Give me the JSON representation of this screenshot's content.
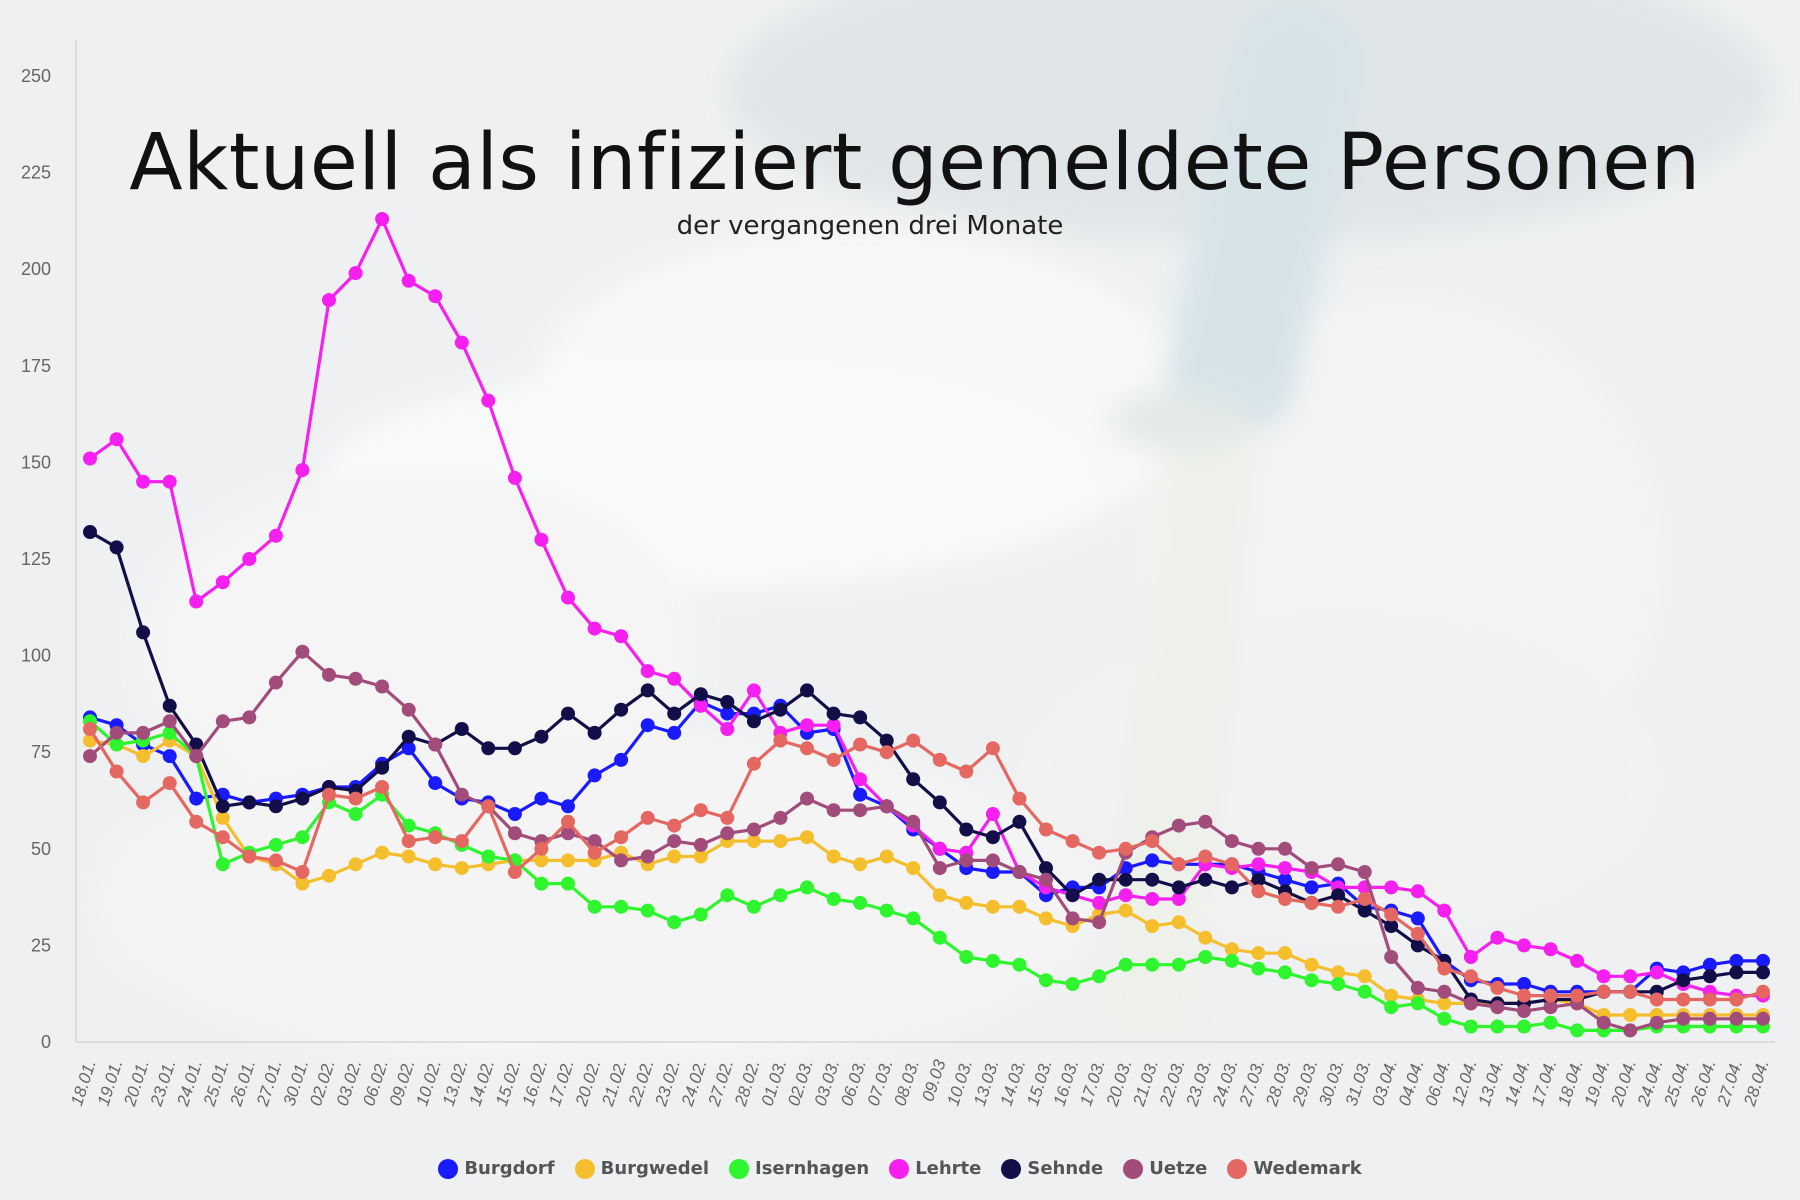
{
  "chart_data": {
    "type": "line",
    "title": "Aktuell als infiziert gemeldete Personen",
    "subtitle": "der vergangenen drei Monate",
    "xlabel": "",
    "ylabel": "",
    "ylim": [
      0,
      250
    ],
    "yticks": [
      "0",
      "25",
      "50",
      "75",
      "100",
      "125",
      "150",
      "175",
      "200",
      "225",
      "250"
    ],
    "grid": false,
    "legend_position": "bottom-center",
    "categories": [
      "18.01.",
      "19.01.",
      "20.01.",
      "23.01.",
      "24.01.",
      "25.01.",
      "26.01.",
      "27.01.",
      "30.01.",
      "02.02.",
      "03.02.",
      "06.02.",
      "09.02.",
      "10.02.",
      "13.02.",
      "14.02.",
      "15.02.",
      "16.02.",
      "17.02.",
      "20.02.",
      "21.02.",
      "22.02.",
      "23.02.",
      "24.02.",
      "27.02.",
      "28.02.",
      "01.03.",
      "02.03.",
      "03.03.",
      "06.03.",
      "07.03.",
      "08.03.",
      "09.03",
      "10.03.",
      "13.03.",
      "14.03.",
      "15.03.",
      "16.03.",
      "17.03.",
      "20.03.",
      "21.03.",
      "22.03.",
      "23.03.",
      "24.03.",
      "27.03.",
      "28.03.",
      "29.03.",
      "30.03.",
      "31.03.",
      "03.04.",
      "04.04.",
      "06.04.",
      "12.04.",
      "13.04.",
      "14.04.",
      "17.04.",
      "18.04.",
      "19.04.",
      "20.04.",
      "24.04.",
      "25.04.",
      "26.04.",
      "27.04.",
      "28.04."
    ],
    "series": [
      {
        "name": "Burgdorf",
        "color": "#1a1aff",
        "values": [
          84,
          82,
          77,
          74,
          63,
          64,
          62,
          63,
          64,
          66,
          66,
          72,
          76,
          67,
          63,
          62,
          59,
          63,
          61,
          69,
          73,
          82,
          80,
          88,
          85,
          85,
          87,
          80,
          81,
          64,
          61,
          55,
          50,
          45,
          44,
          44,
          38,
          40,
          40,
          45,
          47,
          46,
          46,
          46,
          44,
          42,
          40,
          41,
          35,
          34,
          32,
          21,
          16,
          15,
          15,
          13,
          13,
          13,
          13,
          19,
          18,
          20,
          21,
          21
        ]
      },
      {
        "name": "Burgwedel",
        "color": "#f5be2d",
        "values": [
          78,
          77,
          74,
          78,
          74,
          58,
          48,
          46,
          41,
          43,
          46,
          49,
          48,
          46,
          45,
          46,
          47,
          47,
          47,
          47,
          49,
          46,
          48,
          48,
          52,
          52,
          52,
          53,
          48,
          46,
          48,
          45,
          38,
          36,
          35,
          35,
          32,
          30,
          33,
          34,
          30,
          31,
          27,
          24,
          23,
          23,
          20,
          18,
          17,
          12,
          11,
          10,
          10,
          10,
          10,
          11,
          10,
          7,
          7,
          7,
          7,
          7,
          7,
          7
        ]
      },
      {
        "name": "Isernhagen",
        "color": "#2ef52e",
        "values": [
          83,
          77,
          78,
          80,
          74,
          46,
          49,
          51,
          53,
          62,
          59,
          64,
          56,
          54,
          51,
          48,
          47,
          41,
          41,
          35,
          35,
          34,
          31,
          33,
          38,
          35,
          38,
          40,
          37,
          36,
          34,
          32,
          27,
          22,
          21,
          20,
          16,
          15,
          17,
          20,
          20,
          20,
          22,
          21,
          19,
          18,
          16,
          15,
          13,
          9,
          10,
          6,
          4,
          4,
          4,
          5,
          3,
          3,
          3,
          4,
          4,
          4,
          4,
          4
        ]
      },
      {
        "name": "Lehrte",
        "color": "#f520f0",
        "values": [
          151,
          156,
          145,
          145,
          114,
          119,
          125,
          131,
          148,
          192,
          199,
          213,
          197,
          193,
          181,
          166,
          146,
          130,
          115,
          107,
          105,
          96,
          94,
          87,
          81,
          91,
          80,
          82,
          82,
          68,
          61,
          56,
          50,
          49,
          59,
          44,
          40,
          38,
          36,
          38,
          37,
          37,
          46,
          45,
          46,
          45,
          44,
          40,
          40,
          40,
          39,
          34,
          22,
          27,
          25,
          24,
          21,
          17,
          17,
          18,
          15,
          13,
          12,
          12
        ]
      },
      {
        "name": "Sehnde",
        "color": "#120f48",
        "values": [
          132,
          128,
          106,
          87,
          77,
          61,
          62,
          61,
          63,
          66,
          65,
          71,
          79,
          77,
          81,
          76,
          76,
          79,
          85,
          80,
          86,
          91,
          85,
          90,
          88,
          83,
          86,
          91,
          85,
          84,
          78,
          68,
          62,
          55,
          53,
          57,
          45,
          38,
          42,
          42,
          42,
          40,
          42,
          40,
          42,
          39,
          36,
          38,
          34,
          30,
          25,
          21,
          11,
          10,
          10,
          11,
          11,
          13,
          13,
          13,
          16,
          17,
          18,
          18
        ]
      },
      {
        "name": "Uetze",
        "color": "#a24c7c",
        "values": [
          74,
          80,
          80,
          83,
          74,
          83,
          84,
          93,
          101,
          95,
          94,
          92,
          86,
          77,
          64,
          61,
          54,
          52,
          54,
          52,
          47,
          48,
          52,
          51,
          54,
          55,
          58,
          63,
          60,
          60,
          61,
          57,
          45,
          47,
          47,
          44,
          42,
          32,
          31,
          49,
          53,
          56,
          57,
          52,
          50,
          50,
          45,
          46,
          44,
          22,
          14,
          13,
          10,
          9,
          8,
          9,
          10,
          5,
          3,
          5,
          6,
          6,
          6,
          6
        ]
      },
      {
        "name": "Wedemark",
        "color": "#e46861",
        "values": [
          81,
          70,
          62,
          67,
          57,
          53,
          48,
          47,
          44,
          64,
          63,
          66,
          52,
          53,
          52,
          61,
          44,
          50,
          57,
          49,
          53,
          58,
          56,
          60,
          58,
          72,
          78,
          76,
          73,
          77,
          75,
          78,
          73,
          70,
          76,
          63,
          55,
          52,
          49,
          50,
          52,
          46,
          48,
          46,
          39,
          37,
          36,
          35,
          37,
          33,
          28,
          19,
          17,
          14,
          12,
          12,
          12,
          13,
          13,
          11,
          11,
          11,
          11,
          13
        ]
      }
    ]
  }
}
